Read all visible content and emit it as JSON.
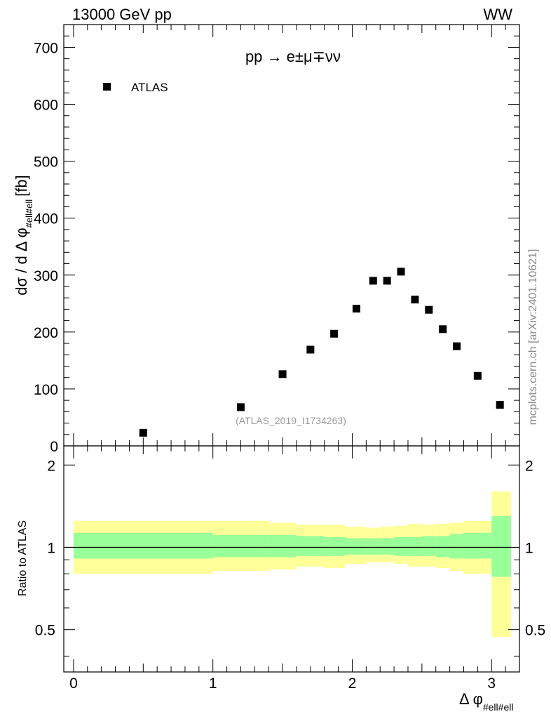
{
  "header": {
    "energy_label": "13000 GeV pp",
    "process_label": "WW",
    "process_formula": "pp → e±μ∓νν",
    "side_credit": "mcplots.cern.ch [arXiv:2401.10621]",
    "analysis_id": "(ATLAS_2019_I1734263)"
  },
  "chart_data": [
    {
      "type": "scatter",
      "panel": "main",
      "ylabel": "dσ / d Δ φ#ell#ell [fb]",
      "ylabel_main": "dσ / d Δ φ",
      "ylabel_sub": "#ell#ell",
      "ylabel_unit": "[fb]",
      "xlim": [
        -0.07,
        3.2
      ],
      "ylim": [
        0,
        740
      ],
      "yticks": [
        0,
        100,
        200,
        300,
        400,
        500,
        600,
        700
      ],
      "legend": {
        "position": "top-left",
        "entries": [
          "ATLAS"
        ]
      },
      "series": [
        {
          "name": "ATLAS",
          "marker": "square",
          "color": "#000000",
          "x": [
            0.5,
            1.2,
            1.5,
            1.7,
            1.87,
            2.03,
            2.15,
            2.25,
            2.35,
            2.45,
            2.55,
            2.65,
            2.75,
            2.9,
            3.06
          ],
          "y": [
            23,
            68,
            126,
            169,
            197,
            241,
            290,
            290,
            306,
            257,
            239,
            205,
            175,
            123,
            72
          ]
        }
      ]
    },
    {
      "type": "area",
      "panel": "ratio",
      "ylabel": "Ratio to ATLAS",
      "xlabel": "Δ φ#ell#ell",
      "xlabel_main": "Δ φ",
      "xlabel_sub": "#ell#ell",
      "xlim": [
        -0.07,
        3.2
      ],
      "ylim": [
        0.35,
        2.35
      ],
      "xticks": [
        0,
        1,
        2,
        3
      ],
      "yticks": [
        0.5,
        1,
        2
      ],
      "reference_line": 1,
      "bins": [
        0,
        1,
        1.4,
        1.6,
        1.8,
        1.95,
        2.1,
        2.2,
        2.3,
        2.4,
        2.5,
        2.6,
        2.7,
        2.8,
        3.0,
        3.14
      ],
      "band_inner": {
        "name": "stat",
        "color": "#99ff99",
        "lo": [
          0.91,
          0.92,
          0.92,
          0.93,
          0.93,
          0.94,
          0.94,
          0.94,
          0.93,
          0.93,
          0.93,
          0.92,
          0.91,
          0.91,
          0.78
        ],
        "hi": [
          1.13,
          1.11,
          1.11,
          1.1,
          1.09,
          1.08,
          1.08,
          1.08,
          1.09,
          1.09,
          1.1,
          1.1,
          1.12,
          1.13,
          1.3
        ]
      },
      "band_outer": {
        "name": "total",
        "color": "#ffff99",
        "lo": [
          0.8,
          0.82,
          0.83,
          0.85,
          0.84,
          0.87,
          0.88,
          0.88,
          0.87,
          0.85,
          0.85,
          0.84,
          0.82,
          0.8,
          0.47
        ],
        "hi": [
          1.25,
          1.25,
          1.23,
          1.21,
          1.21,
          1.19,
          1.18,
          1.19,
          1.2,
          1.22,
          1.21,
          1.22,
          1.23,
          1.25,
          1.6
        ]
      }
    }
  ]
}
